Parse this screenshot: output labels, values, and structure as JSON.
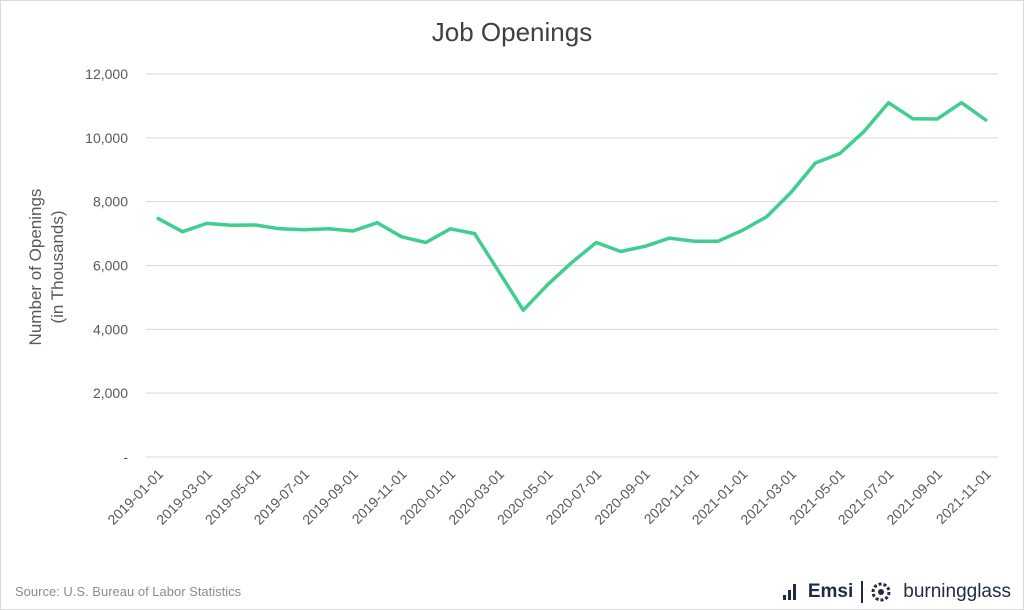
{
  "title": "Job Openings",
  "source": "Source:  U.S. Bureau of Labor Statistics",
  "logos": {
    "left": "Emsi",
    "right": "burningglass"
  },
  "chart_data": {
    "type": "line",
    "title": "Job Openings",
    "ylabel_lines": [
      "Number of Openings",
      "(in Thousands)"
    ],
    "xlabel": "",
    "ylim": [
      0,
      12000
    ],
    "y_ticks": [
      0,
      2000,
      4000,
      6000,
      8000,
      10000,
      12000
    ],
    "y_tick_labels": [
      "-",
      "2,000",
      "4,000",
      "6,000",
      "8,000",
      "10,000",
      "12,000"
    ],
    "grid": true,
    "x": [
      "2019-01-01",
      "2019-02-01",
      "2019-03-01",
      "2019-04-01",
      "2019-05-01",
      "2019-06-01",
      "2019-07-01",
      "2019-08-01",
      "2019-09-01",
      "2019-10-01",
      "2019-11-01",
      "2019-12-01",
      "2020-01-01",
      "2020-02-01",
      "2020-03-01",
      "2020-04-01",
      "2020-05-01",
      "2020-06-01",
      "2020-07-01",
      "2020-08-01",
      "2020-09-01",
      "2020-10-01",
      "2020-11-01",
      "2020-12-01",
      "2021-01-01",
      "2021-02-01",
      "2021-03-01",
      "2021-04-01",
      "2021-05-01",
      "2021-06-01",
      "2021-07-01",
      "2021-08-01",
      "2021-09-01",
      "2021-10-01",
      "2021-11-01"
    ],
    "x_tick_labels": [
      "2019-01-01",
      "2019-03-01",
      "2019-05-01",
      "2019-07-01",
      "2019-09-01",
      "2019-11-01",
      "2020-01-01",
      "2020-03-01",
      "2020-05-01",
      "2020-07-01",
      "2020-09-01",
      "2020-11-01",
      "2021-01-01",
      "2021-03-01",
      "2021-05-01",
      "2021-07-01",
      "2021-09-01",
      "2021-11-01"
    ],
    "series": [
      {
        "color": "#3ecf8e",
        "values": [
          7470,
          7060,
          7320,
          7260,
          7270,
          7150,
          7120,
          7150,
          7080,
          7340,
          6900,
          6720,
          7150,
          7000,
          5800,
          4600,
          5400,
          6100,
          6720,
          6440,
          6600,
          6860,
          6760,
          6760,
          7100,
          7530,
          8290,
          9210,
          9510,
          10200,
          11100,
          10600,
          10590,
          11100,
          10560
        ]
      }
    ]
  }
}
